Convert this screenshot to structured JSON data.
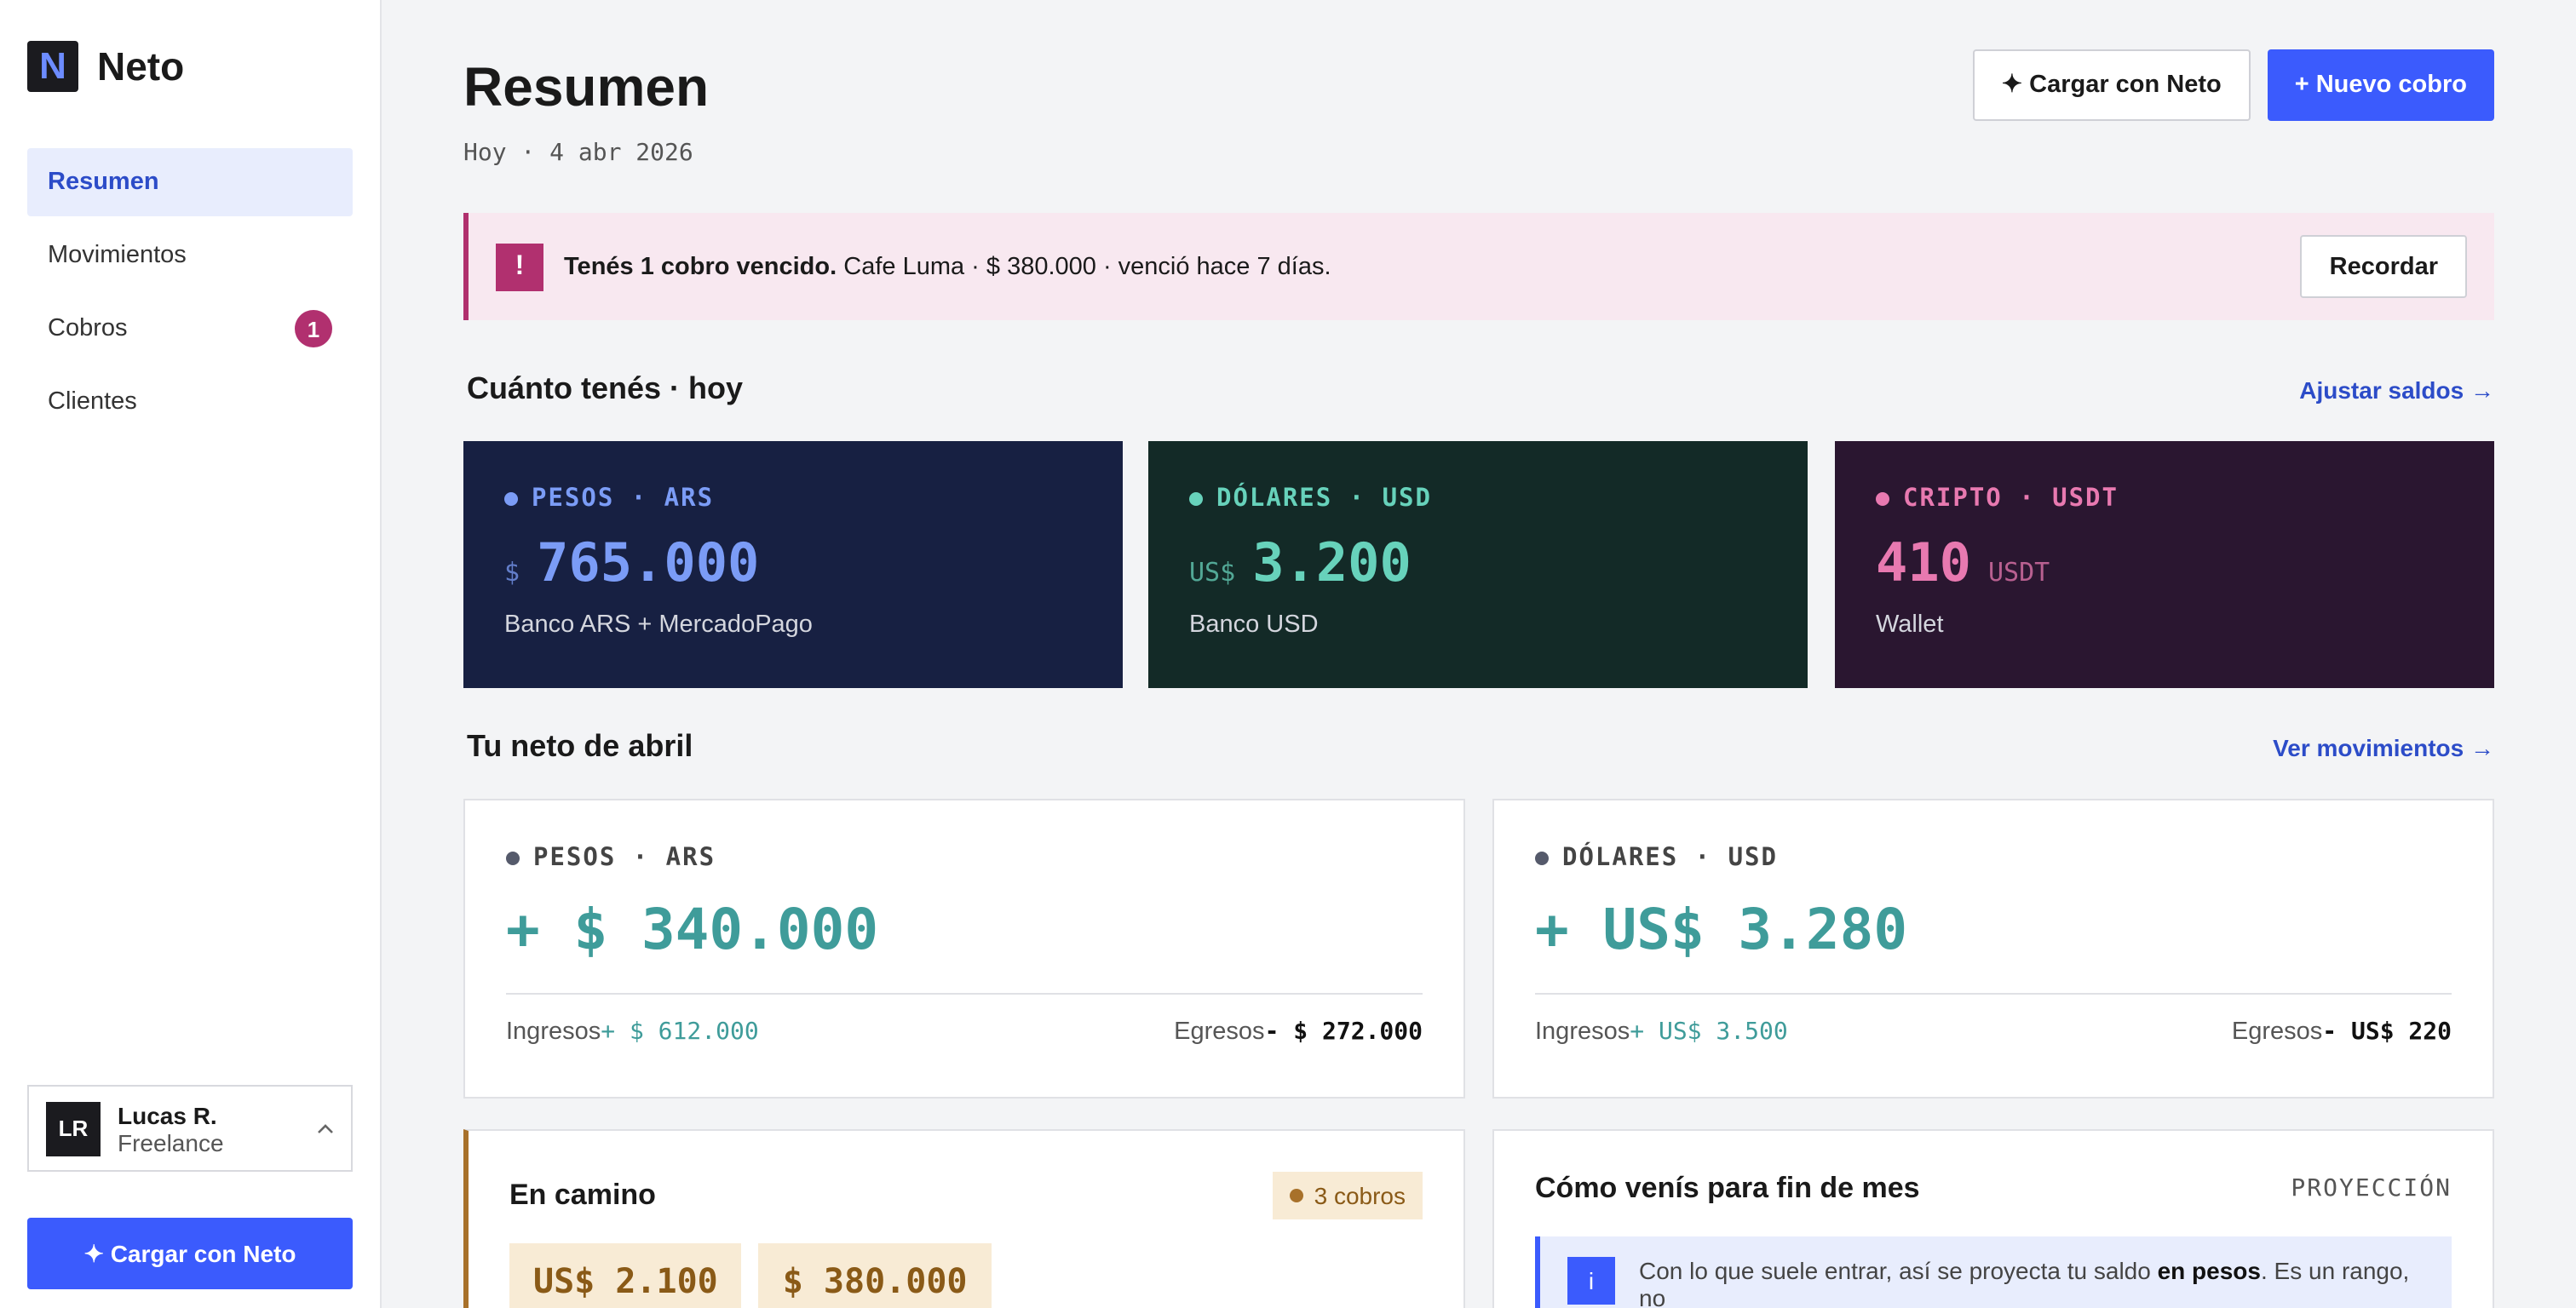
{
  "sidebar": {
    "logo": "N",
    "brand": "Neto",
    "nav": [
      {
        "label": "Resumen"
      },
      {
        "label": "Movimientos"
      },
      {
        "label": "Cobros",
        "badge": 1
      },
      {
        "label": "Clientes"
      }
    ],
    "user": {
      "initials": "LR",
      "name": "Lucas R.",
      "role": "Freelance"
    },
    "action": "✦ Cargar con Neto"
  },
  "header": {
    "title": "Resumen",
    "date": "Hoy · 4 abr 2026",
    "actions": [
      "✦ Cargar con Neto",
      "+ Nuevo cobro"
    ]
  },
  "alert": {
    "icon": "!",
    "strong": "Tenés 1 cobro vencido.",
    "text": "Cafe Luma · $ 380.000 · venció hace 7 días.",
    "action": "Recordar"
  },
  "balances": {
    "title": "Cuánto tenés · hoy",
    "link": "Ajustar saldos →",
    "cards": [
      {
        "label": "PESOS · ARS",
        "prefix": "$",
        "amount": "765.000",
        "detail": "Banco ARS + MercadoPago"
      },
      {
        "label": "DÓLARES · USD",
        "prefix": "US$",
        "amount": "3.200",
        "detail": "Banco USD"
      },
      {
        "label": "CRIPTO · USDT",
        "amount": "410",
        "suffix": "USDT",
        "detail": "Wallet"
      }
    ]
  },
  "neto": {
    "title": "Tu neto de abril",
    "link": "Ver movimientos →",
    "cards": [
      {
        "label": "PESOS · ARS",
        "net": "+ $ 340.000",
        "income_label": "Ingresos",
        "income": "+ $ 612.000",
        "expense_label": "Egresos",
        "expense": "- $ 272.000"
      },
      {
        "label": "DÓLARES · USD",
        "net": "+ US$ 3.280",
        "income_label": "Ingresos",
        "income": "+ US$ 3.500",
        "expense_label": "Egresos",
        "expense": "- US$ 220"
      }
    ]
  },
  "en_camino": {
    "title": "En camino",
    "badge": "3 cobros",
    "amounts": [
      "US$ 2.100",
      "$ 380.000"
    ]
  },
  "proyeccion": {
    "title": "Cómo venís para fin de mes",
    "tag": "PROYECCIÓN",
    "icon": "i",
    "text_before": "Con lo que suele entrar, así se proyecta tu saldo ",
    "strong": "en pesos",
    "text_after": ". Es un rango, no"
  }
}
